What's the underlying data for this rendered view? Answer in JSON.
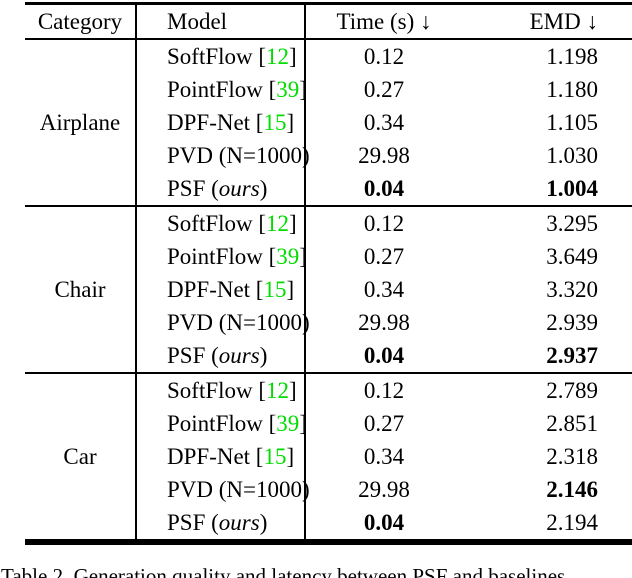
{
  "table": {
    "headers": {
      "category": "Category",
      "model": "Model",
      "time": "Time (s) ↓",
      "emd": "EMD ↓"
    },
    "sections": [
      {
        "category": "Airplane",
        "rows": [
          {
            "model_prefix": "SoftFlow [",
            "cite": "12",
            "italic": "",
            "model_suffix": "]",
            "time": "0.12",
            "emd": "1.198"
          },
          {
            "model_prefix": "PointFlow [",
            "cite": "39",
            "italic": "",
            "model_suffix": "]",
            "time": "0.27",
            "emd": "1.180"
          },
          {
            "model_prefix": "DPF-Net [",
            "cite": "15",
            "italic": "",
            "model_suffix": "]",
            "time": "0.34",
            "emd": "1.105"
          },
          {
            "model_prefix": "PVD (N=1000)",
            "cite": "",
            "italic": "",
            "model_suffix": "",
            "time": "29.98",
            "emd": "1.030"
          },
          {
            "model_prefix": "PSF (",
            "cite": "",
            "italic": "ours",
            "model_suffix": ")",
            "time": "0.04",
            "emd": "1.004"
          }
        ]
      },
      {
        "category": "Chair",
        "rows": [
          {
            "model_prefix": "SoftFlow [",
            "cite": "12",
            "italic": "",
            "model_suffix": "]",
            "time": "0.12",
            "emd": "3.295"
          },
          {
            "model_prefix": "PointFlow [",
            "cite": "39",
            "italic": "",
            "model_suffix": "]",
            "time": "0.27",
            "emd": "3.649"
          },
          {
            "model_prefix": "DPF-Net [",
            "cite": "15",
            "italic": "",
            "model_suffix": "]",
            "time": "0.34",
            "emd": "3.320"
          },
          {
            "model_prefix": "PVD (N=1000)",
            "cite": "",
            "italic": "",
            "model_suffix": "",
            "time": "29.98",
            "emd": "2.939"
          },
          {
            "model_prefix": "PSF (",
            "cite": "",
            "italic": "ours",
            "model_suffix": ")",
            "time": "0.04",
            "emd": "2.937"
          }
        ]
      },
      {
        "category": "Car",
        "rows": [
          {
            "model_prefix": "SoftFlow [",
            "cite": "12",
            "italic": "",
            "model_suffix": "]",
            "time": "0.12",
            "emd": "2.789"
          },
          {
            "model_prefix": "PointFlow [",
            "cite": "39",
            "italic": "",
            "model_suffix": "]",
            "time": "0.27",
            "emd": "2.851"
          },
          {
            "model_prefix": "DPF-Net [",
            "cite": "15",
            "italic": "",
            "model_suffix": "]",
            "time": "0.34",
            "emd": "2.318"
          },
          {
            "model_prefix": "PVD (N=1000)",
            "cite": "",
            "italic": "",
            "model_suffix": "",
            "time": "29.98",
            "emd": "2.146"
          },
          {
            "model_prefix": "PSF (",
            "cite": "",
            "italic": "ours",
            "model_suffix": ")",
            "time": "0.04",
            "emd": "2.194"
          }
        ]
      }
    ]
  },
  "caption": "Table 2. Generation quality and latency between PSF and baselines",
  "colors": {
    "citation_green": "#00dd00"
  }
}
